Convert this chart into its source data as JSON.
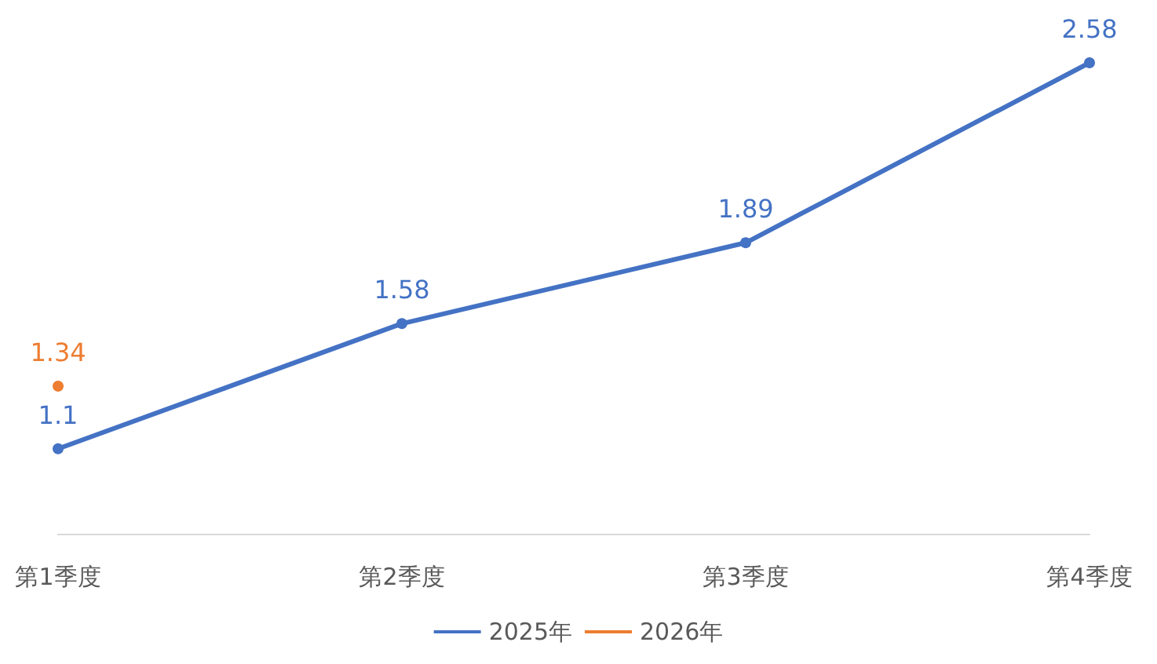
{
  "chart_data": {
    "type": "line",
    "categories": [
      "第1季度",
      "第2季度",
      "第3季度",
      "第4季度"
    ],
    "series": [
      {
        "name": "2025年",
        "color": "#4472c4",
        "values": [
          1.1,
          1.58,
          1.89,
          2.58
        ]
      },
      {
        "name": "2026年",
        "color": "#ed7d31",
        "values": [
          1.34,
          null,
          null,
          null
        ]
      }
    ],
    "data_labels": true,
    "legend": "bottom",
    "marker": "circle",
    "line_style": "solid",
    "grid": false
  }
}
